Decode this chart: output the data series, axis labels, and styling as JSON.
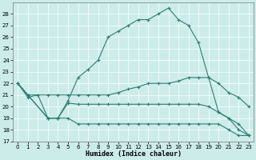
{
  "xlabel": "Humidex (Indice chaleur)",
  "bg_color": "#ccecea",
  "line_color": "#2e7d72",
  "grid_color": "#ffffff",
  "xlim_min": -0.5,
  "xlim_max": 23.5,
  "ylim_min": 17,
  "ylim_max": 29,
  "yticks": [
    17,
    18,
    19,
    20,
    21,
    22,
    23,
    24,
    25,
    26,
    27,
    28
  ],
  "xticks": [
    0,
    1,
    2,
    3,
    4,
    5,
    6,
    7,
    8,
    9,
    10,
    11,
    12,
    13,
    14,
    15,
    16,
    17,
    18,
    19,
    20,
    21,
    22,
    23
  ],
  "line1_x": [
    0,
    1,
    2,
    3,
    4,
    5,
    6,
    7,
    8,
    9,
    10,
    11,
    12,
    13,
    14,
    15,
    16,
    17,
    18,
    19,
    20,
    21,
    22,
    23
  ],
  "line1_y": [
    22,
    20.8,
    21,
    19,
    19,
    20.5,
    22.5,
    23.2,
    24,
    26,
    26.5,
    27,
    27.5,
    27.5,
    28,
    28.5,
    27.5,
    27,
    25.5,
    22.5,
    19.5,
    19,
    18,
    17.5
  ],
  "line2_x": [
    0,
    1,
    3,
    4,
    5,
    6,
    7,
    8,
    9,
    10,
    11,
    12,
    13,
    14,
    15,
    16,
    17,
    18,
    19,
    20,
    21,
    22,
    23
  ],
  "line2_y": [
    22,
    21,
    21,
    21,
    21,
    21,
    21,
    21,
    21,
    21.2,
    21.5,
    21.7,
    22,
    22,
    22,
    22.2,
    22.5,
    22.5,
    22.5,
    22,
    21.2,
    20.8,
    20
  ],
  "line3_x": [
    0,
    1,
    3,
    4,
    5,
    6,
    7,
    8,
    9,
    10,
    11,
    12,
    13,
    14,
    15,
    16,
    17,
    18,
    19,
    20,
    21,
    22,
    23
  ],
  "line3_y": [
    22,
    21,
    19,
    19,
    20.3,
    20.2,
    20.2,
    20.2,
    20.2,
    20.2,
    20.2,
    20.2,
    20.2,
    20.2,
    20.2,
    20.2,
    20.2,
    20.2,
    20,
    19.5,
    19,
    18.5,
    17.5
  ],
  "line4_x": [
    0,
    1,
    3,
    4,
    5,
    6,
    7,
    8,
    9,
    10,
    11,
    12,
    13,
    14,
    15,
    16,
    17,
    18,
    19,
    20,
    21,
    22,
    23
  ],
  "line4_y": [
    22,
    21,
    19,
    19,
    19,
    18.5,
    18.5,
    18.5,
    18.5,
    18.5,
    18.5,
    18.5,
    18.5,
    18.5,
    18.5,
    18.5,
    18.5,
    18.5,
    18.5,
    18.5,
    18,
    17.5,
    17.5
  ]
}
